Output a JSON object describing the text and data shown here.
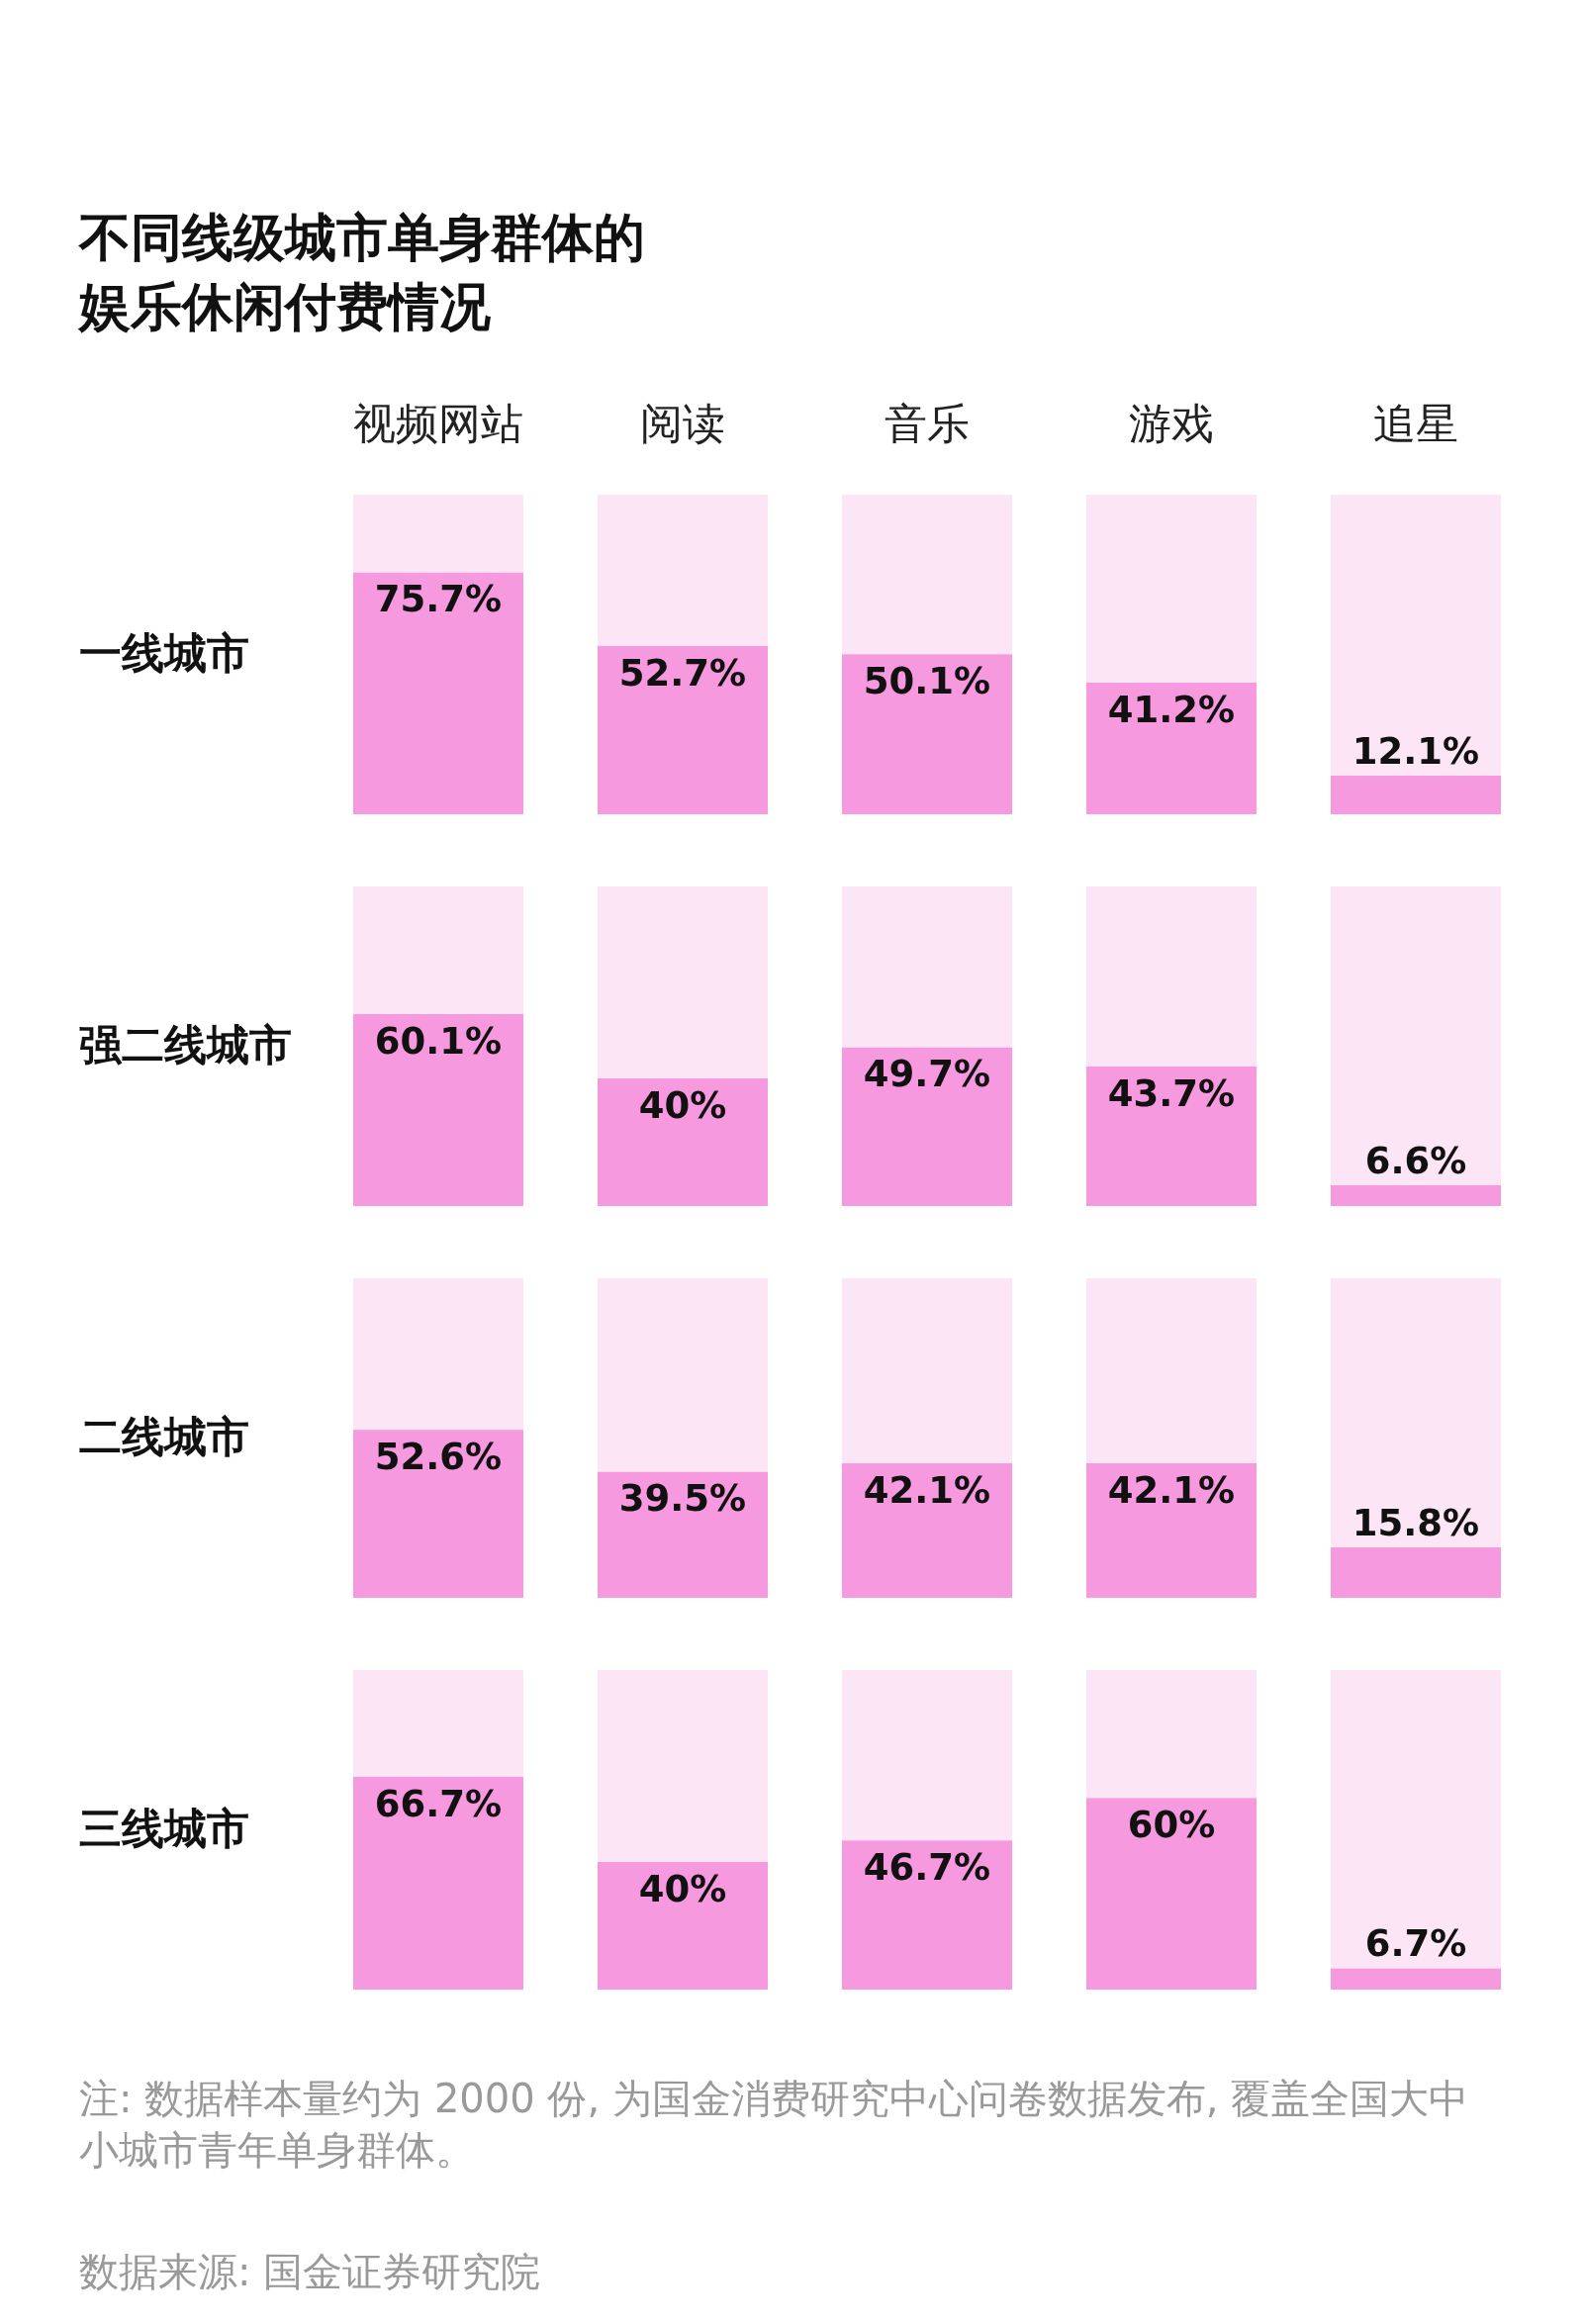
{
  "chart_data": [
    {
      "type": "bar",
      "title": "不同线级城市单身群体的娱乐休闲付费情况",
      "ylabel": "一线城市",
      "categories": [
        "视频网站",
        "阅读",
        "音乐",
        "游戏",
        "追星"
      ],
      "stacked": true,
      "tick_labels": "x",
      "series": [
        {
          "color": "#f799de",
          "values": [
            75.7,
            52.7,
            50.1,
            41.2,
            12.1
          ],
          "value_labels": [
            "75.7%",
            "52.7%",
            "50.1%",
            "41.2%",
            "12.1%"
          ]
        },
        {
          "color": "#fce6f5",
          "values": [
            24.3,
            47.3,
            49.9,
            58.8,
            87.9
          ]
        }
      ]
    },
    {
      "type": "bar",
      "ylabel": "强二线城市",
      "categories": [
        null,
        null,
        null,
        null,
        null
      ],
      "stacked": true,
      "tick_labels": false,
      "series": [
        {
          "color": "#f799de",
          "values": [
            60.1,
            40,
            49.7,
            43.7,
            6.6
          ],
          "value_labels": [
            "60.1%",
            "40%",
            "49.7%",
            "43.7%",
            "6.6%"
          ]
        },
        {
          "color": "#fce6f5",
          "values": [
            39.9,
            60,
            50.3,
            56.3,
            93.4
          ]
        }
      ]
    },
    {
      "type": "bar",
      "ylabel": "二线城市",
      "categories": [
        null,
        null,
        null,
        null,
        null
      ],
      "stacked": true,
      "tick_labels": false,
      "series": [
        {
          "color": "#f799de",
          "values": [
            52.6,
            39.5,
            42.1,
            42.1,
            15.8
          ],
          "value_labels": [
            "52.6%",
            "39.5%",
            "42.1%",
            "42.1%",
            "15.8%"
          ]
        },
        {
          "color": "#fce6f5",
          "values": [
            47.4,
            60.5,
            57.9,
            57.9,
            84.2
          ]
        }
      ]
    },
    {
      "type": "bar",
      "ylabel": "三线城市",
      "categories": [
        null,
        null,
        null,
        null,
        null
      ],
      "stacked": true,
      "tick_labels": false,
      "annotations": [
        "注: 数据样本量约为 2000 份, 为国金消费研究中心问卷数据发布, 覆盖全国大中小城市青年单身群体。",
        "数据来源: 国金证券研究院"
      ],
      "series": [
        {
          "color": "#f799de",
          "values": [
            66.7,
            40,
            46.7,
            60,
            6.7
          ],
          "value_labels": [
            "66.7%",
            "40%",
            "46.7%",
            "60%",
            "6.7%"
          ]
        },
        {
          "color": "#fce6f5",
          "values": [
            33.3,
            60,
            53.3,
            40,
            93.3
          ]
        }
      ]
    }
  ]
}
